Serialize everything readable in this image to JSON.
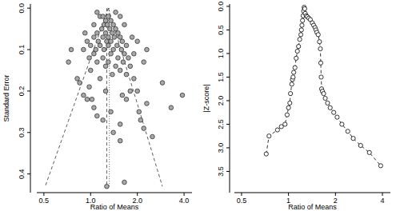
{
  "chart_data": [
    {
      "type": "scatter",
      "x_label": "Ratio of Means",
      "y_label": "Standard Error",
      "log": "x",
      "marker": "circle",
      "color": "#a8a8a8",
      "xlim": [
        0.45,
        4.5
      ],
      "ylim": [
        0.445,
        -0.01
      ],
      "xticks": [
        0.5,
        {
          "value": 1,
          "label": "1.0"
        },
        {
          "value": 2,
          "label": "2.0"
        },
        {
          "value": 4,
          "label": "4.0"
        }
      ],
      "yticks": [
        {
          "value": 0,
          "label": "0.0"
        },
        0.1,
        0.2,
        0.3,
        0.4
      ],
      "x": [
        1.15,
        1.2,
        1.25,
        1.3,
        1.35,
        1.22,
        1.28,
        1.4,
        1.18,
        1.33,
        1.45,
        1.1,
        1.25,
        1.38,
        1.5,
        1.05,
        1.2,
        1.3,
        1.42,
        1.55,
        0.95,
        1.12,
        1.27,
        1.35,
        1.6,
        1.0,
        1.15,
        1.3,
        1.48,
        1.7,
        0.9,
        1.08,
        1.22,
        1.4,
        1.58,
        1.65,
        1.05,
        1.35,
        1.5,
        1.2,
        0.98,
        1.75,
        1.62,
        1.3,
        1.1,
        1.45,
        1.8,
        1.25,
        1.55,
        1.0,
        1.7,
        1.38,
        1.9,
        1.15,
        0.72,
        0.75,
        0.82,
        0.85,
        0.9,
        0.95,
        1.02,
        1.05,
        1.1,
        1.2,
        1.35,
        1.4,
        1.55,
        1.6,
        1.7,
        2.0,
        2.05,
        2.1,
        2.2,
        2.3,
        2.5,
        2.9,
        3.3,
        3.9,
        1.65,
        1.27,
        1.55,
        1.9,
        2.0,
        1.85,
        2.3,
        0.92,
        1.05,
        1.65,
        1.55,
        1.45,
        1.1,
        2.2,
        1.8,
        1.25,
        0.98
      ],
      "values": [
        0.02,
        0.02,
        0.03,
        0.02,
        0.03,
        0.04,
        0.04,
        0.04,
        0.05,
        0.05,
        0.05,
        0.06,
        0.06,
        0.06,
        0.06,
        0.07,
        0.07,
        0.07,
        0.07,
        0.07,
        0.08,
        0.08,
        0.08,
        0.08,
        0.08,
        0.09,
        0.09,
        0.09,
        0.09,
        0.09,
        0.1,
        0.1,
        0.1,
        0.1,
        0.1,
        0.11,
        0.11,
        0.11,
        0.12,
        0.12,
        0.12,
        0.12,
        0.13,
        0.13,
        0.13,
        0.14,
        0.14,
        0.14,
        0.15,
        0.15,
        0.16,
        0.16,
        0.17,
        0.17,
        0.13,
        0.1,
        0.17,
        0.18,
        0.21,
        0.22,
        0.22,
        0.24,
        0.26,
        0.27,
        0.25,
        0.3,
        0.28,
        0.21,
        0.22,
        0.2,
        0.25,
        0.27,
        0.29,
        0.23,
        0.31,
        0.18,
        0.24,
        0.21,
        0.42,
        0.43,
        0.32,
        0.11,
        0.08,
        0.07,
        0.1,
        0.06,
        0.04,
        0.04,
        0.02,
        0.01,
        0.01,
        0.13,
        0.2,
        0.2,
        0.19
      ],
      "reference_lines": [
        {
          "x": [
            1.3,
            0.51
          ],
          "y": [
            0,
            0.43
          ],
          "line_style": "dashed"
        },
        {
          "x": [
            1.3,
            2.9
          ],
          "y": [
            0,
            0.43
          ],
          "line_style": "dashed"
        },
        {
          "x": [
            1.27,
            1.27
          ],
          "y": [
            0,
            0.43
          ],
          "line_style": "dashed"
        },
        {
          "x": [
            1.32,
            1.32
          ],
          "y": [
            0,
            0.43
          ],
          "line_style": "dotted"
        }
      ]
    },
    {
      "type": "line",
      "x_label": "Ratio of Means",
      "y_label": "|Z-score|",
      "log": "x",
      "marker": "circle",
      "line_style": "dashed",
      "color": "#000000",
      "xlim": [
        0.45,
        4.5
      ],
      "ylim": [
        3.95,
        -0.05
      ],
      "xticks": [
        0.5,
        1,
        2,
        4
      ],
      "yticks": [
        {
          "value": 0,
          "label": "0.0"
        },
        0.5,
        {
          "value": 1,
          "label": "1.0"
        },
        1.5,
        {
          "value": 2,
          "label": "2.0"
        },
        2.5,
        {
          "value": 3,
          "label": "3.0"
        },
        3.5
      ],
      "x": [
        0.72,
        0.75,
        0.85,
        0.9,
        0.95,
        0.98,
        1.0,
        1.02,
        1.03,
        1.05,
        1.06,
        1.07,
        1.08,
        1.1,
        1.12,
        1.14,
        1.16,
        1.18,
        1.2,
        1.21,
        1.22,
        1.23,
        1.24,
        1.25,
        1.26,
        1.27,
        1.28,
        1.3,
        1.32,
        1.35,
        1.38,
        1.42,
        1.45,
        1.48,
        1.5,
        1.52,
        1.55,
        1.58,
        1.6,
        1.61,
        1.62,
        1.63,
        1.65,
        1.68,
        1.72,
        1.78,
        1.85,
        1.95,
        2.05,
        2.2,
        2.4,
        2.6,
        2.9,
        3.3,
        3.9
      ],
      "values": [
        3.13,
        2.75,
        2.62,
        2.55,
        2.5,
        2.3,
        2.15,
        2.05,
        1.85,
        1.65,
        1.55,
        1.5,
        1.4,
        1.3,
        1.1,
        0.95,
        0.85,
        0.7,
        0.6,
        0.5,
        0.4,
        0.3,
        0.2,
        0.1,
        0.02,
        0.05,
        0.15,
        0.2,
        0.22,
        0.25,
        0.28,
        0.35,
        0.4,
        0.45,
        0.5,
        0.55,
        0.6,
        0.75,
        0.9,
        1.2,
        1.5,
        1.75,
        1.8,
        1.85,
        1.95,
        2.05,
        2.15,
        2.25,
        2.35,
        2.5,
        2.65,
        2.8,
        2.95,
        3.1,
        3.38
      ]
    }
  ]
}
